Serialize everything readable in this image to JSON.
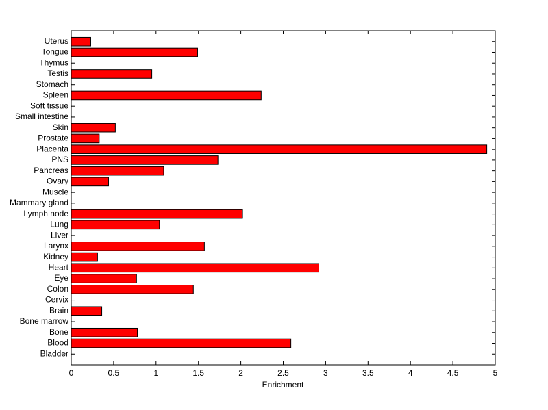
{
  "chart_data": {
    "type": "barh",
    "x_label": "Enrichment",
    "categories": [
      "Bladder",
      "Blood",
      "Bone",
      "Bone marrow",
      "Brain",
      "Cervix",
      "Colon",
      "Eye",
      "Heart",
      "Kidney",
      "Larynx",
      "Liver",
      "Lung",
      "Lymph node",
      "Mammary gland",
      "Muscle",
      "Ovary",
      "Pancreas",
      "PNS",
      "Placenta",
      "Prostate",
      "Skin",
      "Small intestine",
      "Soft tissue",
      "Spleen",
      "Stomach",
      "Testis",
      "Thymus",
      "Tongue",
      "Uterus"
    ],
    "values": [
      0,
      2.59,
      0.78,
      0,
      0.36,
      0,
      1.44,
      0.77,
      2.92,
      0.31,
      1.57,
      0,
      1.04,
      2.02,
      0,
      0,
      0.44,
      1.09,
      1.73,
      4.9,
      0.33,
      0.52,
      0,
      0,
      2.24,
      0,
      0.95,
      0,
      1.49,
      0.23
    ],
    "color": "#ff0000",
    "xlim": [
      0,
      5
    ],
    "xticks": [
      0,
      0.5,
      1,
      1.5,
      2,
      2.5,
      3,
      3.5,
      4,
      4.5,
      5
    ],
    "grid": false
  }
}
